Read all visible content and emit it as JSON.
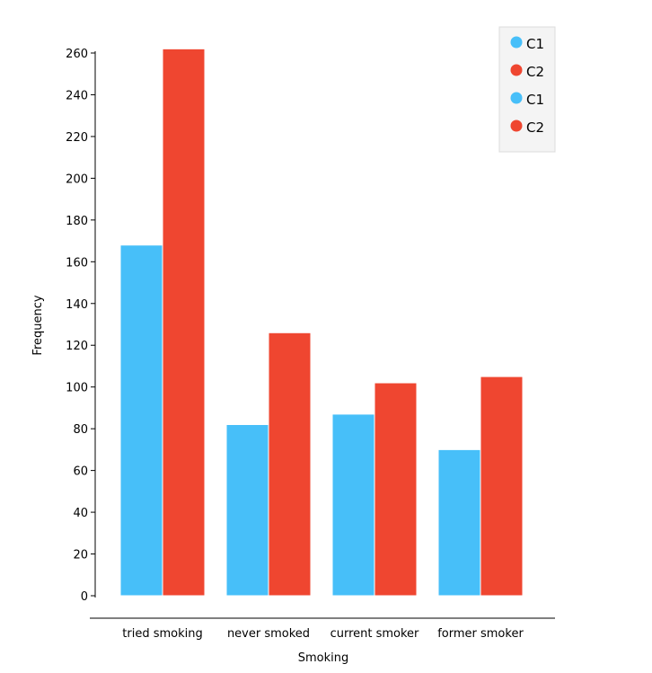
{
  "chart_data": {
    "type": "bar",
    "title": "",
    "xlabel": "Smoking",
    "ylabel": "Frequency",
    "categories": [
      "tried smoking",
      "never smoked",
      "current smoker",
      "former smoker"
    ],
    "series": [
      {
        "name": "C1",
        "color": "#47bff9",
        "values": [
          168,
          82,
          87,
          70
        ]
      },
      {
        "name": "C2",
        "color": "#ef4630",
        "values": [
          262,
          126,
          102,
          105
        ]
      }
    ],
    "ylim": [
      0,
      260
    ],
    "yticks": [
      0,
      20,
      40,
      60,
      80,
      100,
      120,
      140,
      160,
      180,
      200,
      220,
      240,
      260
    ],
    "grid": false,
    "legend": {
      "placement": "top-right",
      "entries": [
        {
          "label": "C1",
          "color": "#47bff9"
        },
        {
          "label": "C2",
          "color": "#ef4630"
        },
        {
          "label": "C1",
          "color": "#47bff9"
        },
        {
          "label": "C2",
          "color": "#ef4630"
        }
      ]
    }
  }
}
